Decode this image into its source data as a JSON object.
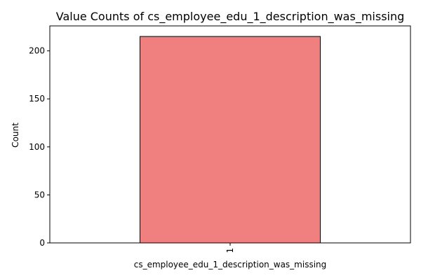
{
  "chart_data": {
    "type": "bar",
    "title": "Value Counts of cs_employee_edu_1_description_was_missing",
    "xlabel": "cs_employee_edu_1_description_was_missing",
    "ylabel": "Count",
    "categories": [
      "1"
    ],
    "values": [
      215
    ],
    "ylim": [
      0,
      226
    ],
    "yticks": [
      0,
      50,
      100,
      150,
      200
    ],
    "bar_color": "#f08080",
    "bar_edge_color": "#000000",
    "grid": false,
    "legend": "none"
  }
}
